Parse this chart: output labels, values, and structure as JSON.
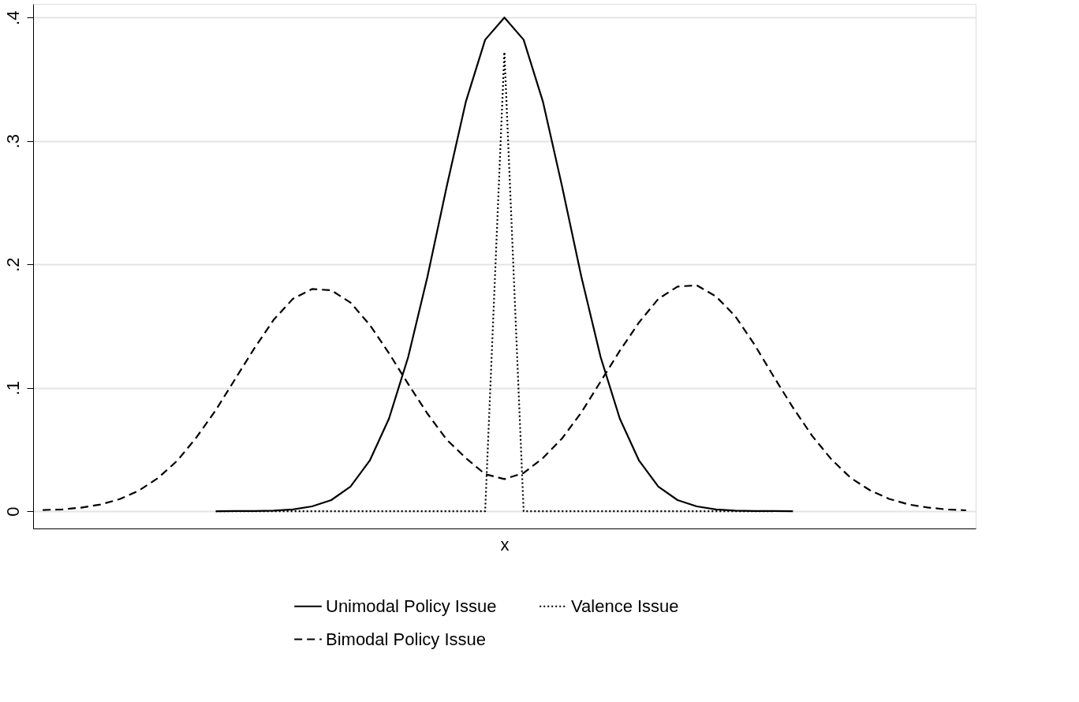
{
  "chart_data": {
    "type": "line",
    "xlabel": "x",
    "categories": [
      null,
      null,
      null,
      null,
      null,
      null,
      null,
      null,
      null,
      null,
      null,
      null,
      null,
      null,
      null,
      null,
      null,
      null,
      null,
      null,
      null,
      null,
      null,
      null,
      null,
      null,
      null,
      null,
      null,
      null,
      null,
      null,
      null,
      null,
      null,
      null,
      null,
      null,
      null,
      null,
      null,
      null,
      null,
      null,
      null,
      null,
      null,
      null,
      null
    ],
    "series": [
      {
        "name": "Unimodal Policy Issue",
        "color": "#000000",
        "line_style": "solid",
        "values": [
          null,
          null,
          null,
          null,
          null,
          null,
          null,
          null,
          null,
          0.0,
          0.0001,
          0.0002,
          0.0005,
          0.0014,
          0.0039,
          0.009,
          0.02,
          0.041,
          0.075,
          0.125,
          0.19,
          0.263,
          0.332,
          0.382,
          0.4,
          0.382,
          0.332,
          0.263,
          0.19,
          0.125,
          0.075,
          0.041,
          0.02,
          0.009,
          0.0039,
          0.0014,
          0.0005,
          0.0002,
          0.0001,
          0.0,
          null,
          null,
          null,
          null,
          null,
          null,
          null,
          null,
          null
        ]
      },
      {
        "name": "Bimodal Policy Issue",
        "color": "#000000",
        "line_style": "dashed",
        "values": [
          0.001,
          0.0014,
          0.0029,
          0.0054,
          0.0098,
          0.0167,
          0.027,
          0.041,
          0.06,
          0.082,
          0.107,
          0.132,
          0.155,
          0.172,
          0.18,
          0.179,
          0.169,
          0.151,
          0.128,
          0.103,
          0.079,
          0.058,
          0.043,
          0.03,
          0.026,
          0.031,
          0.043,
          0.059,
          0.08,
          0.105,
          0.13,
          0.153,
          0.172,
          0.182,
          0.183,
          0.174,
          0.158,
          0.135,
          0.109,
          0.084,
          0.061,
          0.042,
          0.027,
          0.017,
          0.01,
          0.0055,
          0.003,
          0.0014,
          0.0007
        ]
      },
      {
        "name": "Valence Issue",
        "color": "#000000",
        "line_style": "dotted",
        "values": [
          null,
          null,
          null,
          null,
          null,
          null,
          null,
          null,
          null,
          0,
          0,
          0,
          0,
          0,
          0,
          0,
          0,
          0,
          0,
          0,
          0,
          0,
          0,
          0,
          0.372,
          0,
          0,
          0,
          0,
          0,
          0,
          0,
          0,
          0,
          0,
          0,
          0,
          0,
          0,
          null,
          null,
          null,
          null,
          null,
          null,
          null,
          null,
          null,
          null
        ]
      }
    ],
    "ylim": [
      -0.014,
      0.411
    ],
    "yticks": [
      0,
      {
        "value": 0.1,
        "label": ".1"
      },
      {
        "value": 0.2,
        "label": ".2"
      },
      {
        "value": 0.3,
        "label": ".3"
      },
      {
        "value": 0.4,
        "label": ".4"
      }
    ],
    "grid": "y",
    "legend": "bottom",
    "tick_labels": "y"
  }
}
